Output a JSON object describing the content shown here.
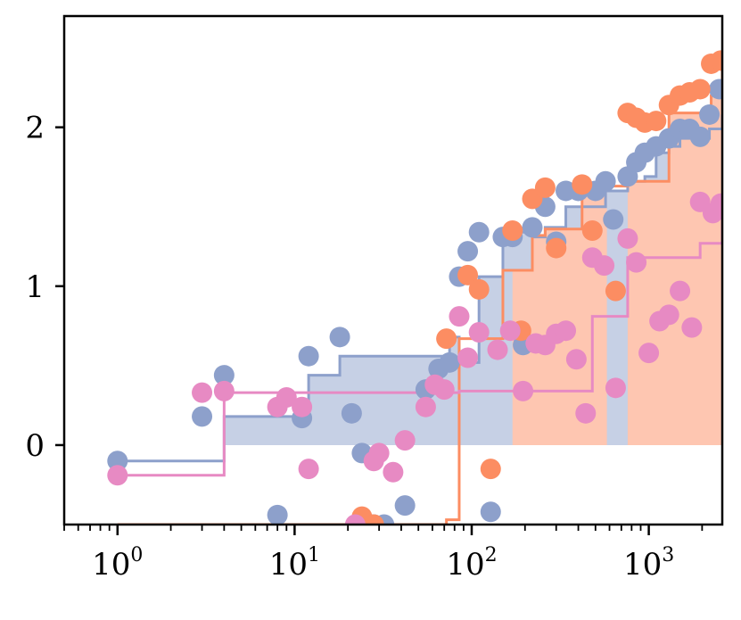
{
  "chart_data": {
    "type": "scatter",
    "title": "",
    "xlabel": "",
    "ylabel": "",
    "xscale": "log",
    "xlim": [
      0.5,
      2600
    ],
    "ylim": [
      -0.5,
      2.7
    ],
    "grid": false,
    "x_ticks": [
      {
        "base": "10",
        "exp": "0",
        "value": 1
      },
      {
        "base": "10",
        "exp": "1",
        "value": 10
      },
      {
        "base": "10",
        "exp": "2",
        "value": 100
      },
      {
        "base": "10",
        "exp": "3",
        "value": 1000
      }
    ],
    "y_ticks": [
      {
        "label": "0",
        "value": 0
      },
      {
        "label": "1",
        "value": 1
      },
      {
        "label": "2",
        "value": 2
      }
    ],
    "series": [
      {
        "color": "#8da0cb",
        "points": [
          [
            1.0,
            -0.1
          ],
          [
            3.0,
            0.18
          ],
          [
            4.0,
            0.44
          ],
          [
            8.0,
            -0.44
          ],
          [
            11.0,
            0.17
          ],
          [
            12.0,
            0.56
          ],
          [
            18.0,
            0.68
          ],
          [
            21.0,
            0.2
          ],
          [
            24.0,
            -0.05
          ],
          [
            28.0,
            -0.5
          ],
          [
            32.0,
            -0.5
          ],
          [
            42.0,
            -0.38
          ],
          [
            55.0,
            0.35
          ],
          [
            65.0,
            0.48
          ],
          [
            75.0,
            0.52
          ],
          [
            85.0,
            1.06
          ],
          [
            95.0,
            1.22
          ],
          [
            110.0,
            1.34
          ],
          [
            128.0,
            -0.42
          ],
          [
            150.0,
            1.31
          ],
          [
            170.0,
            1.31
          ],
          [
            195.0,
            0.63
          ],
          [
            220.0,
            1.37
          ],
          [
            260.0,
            1.5
          ],
          [
            300.0,
            1.28
          ],
          [
            340.0,
            1.6
          ],
          [
            400.0,
            1.6
          ],
          [
            500.0,
            1.6
          ],
          [
            570.0,
            1.66
          ],
          [
            630.0,
            1.42
          ],
          [
            760.0,
            1.69
          ],
          [
            850.0,
            1.78
          ],
          [
            950.0,
            1.84
          ],
          [
            1100.0,
            1.88
          ],
          [
            1300.0,
            1.93
          ],
          [
            1500.0,
            1.99
          ],
          [
            1700.0,
            1.99
          ],
          [
            1950.0,
            1.94
          ],
          [
            2200.0,
            2.08
          ],
          [
            2500.0,
            2.24
          ]
        ],
        "step_x": [
          1,
          3,
          4,
          12,
          18,
          75,
          85,
          110,
          150,
          220,
          260,
          340,
          570,
          760,
          950,
          1100,
          1300,
          1500,
          2200,
          2600
        ],
        "step_y": [
          -0.1,
          -0.1,
          0.18,
          0.44,
          0.56,
          0.68,
          0.52,
          1.06,
          1.34,
          1.31,
          1.37,
          1.5,
          1.6,
          1.66,
          1.69,
          1.84,
          1.88,
          1.93,
          1.99,
          2.08
        ]
      },
      {
        "color": "#fc8d62",
        "points": [
          [
            1.0,
            -0.6
          ],
          [
            24.0,
            -0.45
          ],
          [
            28.0,
            -0.5
          ],
          [
            72.0,
            0.67
          ],
          [
            95.0,
            1.07
          ],
          [
            110.0,
            0.98
          ],
          [
            128.0,
            -0.15
          ],
          [
            170.0,
            1.35
          ],
          [
            190.0,
            0.72
          ],
          [
            220.0,
            1.55
          ],
          [
            260.0,
            1.62
          ],
          [
            300.0,
            1.24
          ],
          [
            420.0,
            1.64
          ],
          [
            480.0,
            1.35
          ],
          [
            650.0,
            0.97
          ],
          [
            760.0,
            2.09
          ],
          [
            850.0,
            2.06
          ],
          [
            950.0,
            2.03
          ],
          [
            1100.0,
            2.04
          ],
          [
            1300.0,
            2.14
          ],
          [
            1500.0,
            2.2
          ],
          [
            1700.0,
            2.22
          ],
          [
            1950.0,
            2.24
          ],
          [
            2250.0,
            2.4
          ],
          [
            2550.0,
            2.42
          ]
        ],
        "step_x": [
          1,
          72,
          85,
          150,
          220,
          260,
          420,
          760,
          1300,
          2250,
          2600
        ],
        "step_y": [
          -0.6,
          -0.47,
          0.67,
          1.1,
          1.32,
          1.36,
          1.63,
          1.66,
          2.09,
          2.2,
          2.4
        ],
        "fill_segments": [
          [
            170,
            580
          ],
          [
            760,
            2600
          ]
        ]
      },
      {
        "color": "#e78ac3",
        "points": [
          [
            1.0,
            -0.19
          ],
          [
            3.0,
            0.33
          ],
          [
            4.0,
            0.34
          ],
          [
            8.0,
            0.24
          ],
          [
            9.0,
            0.3
          ],
          [
            11.0,
            0.24
          ],
          [
            12.0,
            -0.15
          ],
          [
            22.0,
            -0.5
          ],
          [
            28.0,
            -0.1
          ],
          [
            30.0,
            -0.05
          ],
          [
            36.0,
            -0.17
          ],
          [
            42.0,
            0.03
          ],
          [
            55.0,
            0.24
          ],
          [
            62.0,
            0.38
          ],
          [
            70.0,
            0.35
          ],
          [
            85.0,
            0.81
          ],
          [
            95.0,
            0.55
          ],
          [
            110.0,
            0.71
          ],
          [
            140.0,
            0.6
          ],
          [
            165.0,
            0.72
          ],
          [
            195.0,
            0.34
          ],
          [
            230.0,
            0.64
          ],
          [
            260.0,
            0.63
          ],
          [
            300.0,
            0.7
          ],
          [
            340.0,
            0.72
          ],
          [
            390.0,
            0.54
          ],
          [
            440.0,
            0.2
          ],
          [
            480.0,
            1.18
          ],
          [
            560.0,
            1.13
          ],
          [
            650.0,
            0.36
          ],
          [
            760.0,
            1.3
          ],
          [
            850.0,
            1.15
          ],
          [
            1000.0,
            0.58
          ],
          [
            1150.0,
            0.78
          ],
          [
            1300.0,
            0.82
          ],
          [
            1500.0,
            0.97
          ],
          [
            1750.0,
            0.74
          ],
          [
            1950.0,
            1.53
          ],
          [
            2300.0,
            1.46
          ],
          [
            2550.0,
            1.52
          ]
        ],
        "step_x": [
          1,
          3,
          4,
          85,
          480,
          760,
          1950,
          2600
        ],
        "step_y": [
          -0.19,
          -0.19,
          0.33,
          0.34,
          0.81,
          1.18,
          1.27,
          1.46
        ],
        "fill_segments": [
          [
            1,
            4
          ]
        ]
      }
    ]
  }
}
